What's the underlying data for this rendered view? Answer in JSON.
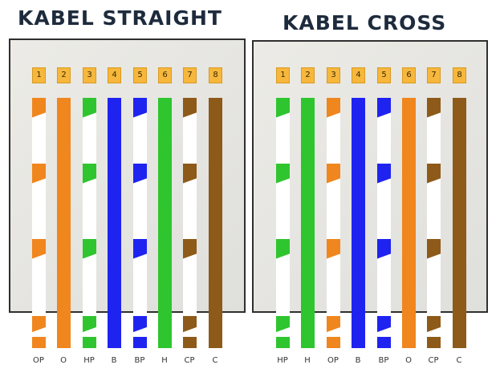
{
  "diagrams": [
    {
      "title": "KABEL STRAIGHT",
      "pins": [
        "1",
        "2",
        "3",
        "4",
        "5",
        "6",
        "7",
        "8"
      ],
      "wires": [
        {
          "label": "OP",
          "color": "#f0861e",
          "pattern": "striped"
        },
        {
          "label": "O",
          "color": "#f0861e",
          "pattern": "solid"
        },
        {
          "label": "HP",
          "color": "#2fc52f",
          "pattern": "striped"
        },
        {
          "label": "B",
          "color": "#1f23f0",
          "pattern": "solid"
        },
        {
          "label": "BP",
          "color": "#1f23f0",
          "pattern": "striped"
        },
        {
          "label": "H",
          "color": "#2fc52f",
          "pattern": "solid"
        },
        {
          "label": "CP",
          "color": "#8e5a19",
          "pattern": "striped"
        },
        {
          "label": "C",
          "color": "#8e5a19",
          "pattern": "solid"
        }
      ]
    },
    {
      "title": "KABEL CROSS",
      "pins": [
        "1",
        "2",
        "3",
        "4",
        "5",
        "6",
        "7",
        "8"
      ],
      "wires": [
        {
          "label": "HP",
          "color": "#2fc52f",
          "pattern": "striped"
        },
        {
          "label": "H",
          "color": "#2fc52f",
          "pattern": "solid"
        },
        {
          "label": "OP",
          "color": "#f0861e",
          "pattern": "striped"
        },
        {
          "label": "B",
          "color": "#1f23f0",
          "pattern": "solid"
        },
        {
          "label": "BP",
          "color": "#1f23f0",
          "pattern": "striped"
        },
        {
          "label": "O",
          "color": "#f0861e",
          "pattern": "solid"
        },
        {
          "label": "CP",
          "color": "#8e5a19",
          "pattern": "striped"
        },
        {
          "label": "C",
          "color": "#8e5a19",
          "pattern": "solid"
        }
      ]
    }
  ]
}
